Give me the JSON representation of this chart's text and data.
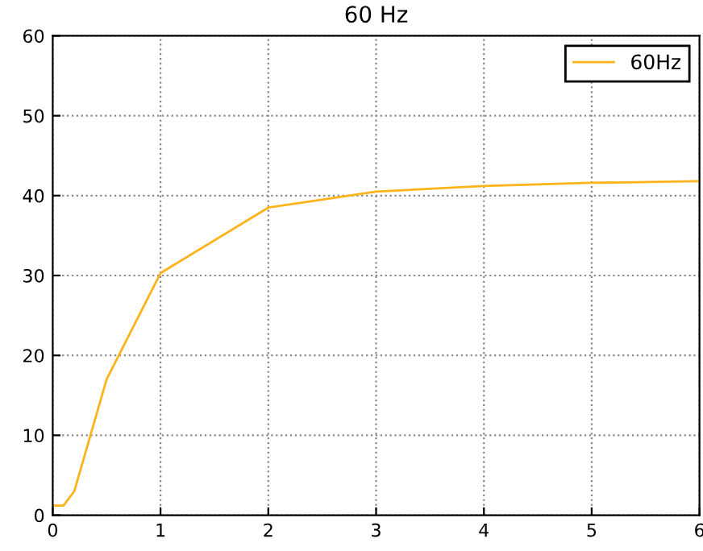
{
  "chart_data": {
    "type": "line",
    "title": "60 Hz",
    "x": [
      0,
      0.1,
      0.2,
      0.5,
      1,
      2,
      3,
      4,
      5,
      6
    ],
    "series": [
      {
        "name": "60Hz",
        "color": "#ffb31a",
        "values": [
          1.2,
          1.2,
          3,
          17,
          30.3,
          38.5,
          40.5,
          41.2,
          41.6,
          41.8
        ]
      }
    ],
    "xlim": [
      0,
      6
    ],
    "xticks": [
      0,
      1,
      2,
      3,
      4,
      5,
      6
    ],
    "ylim": [
      0,
      60
    ],
    "yticks": [
      0,
      10,
      20,
      30,
      40,
      50,
      60
    ],
    "grid": true,
    "legend": "top right",
    "line_style": "solid",
    "marker": "none"
  }
}
